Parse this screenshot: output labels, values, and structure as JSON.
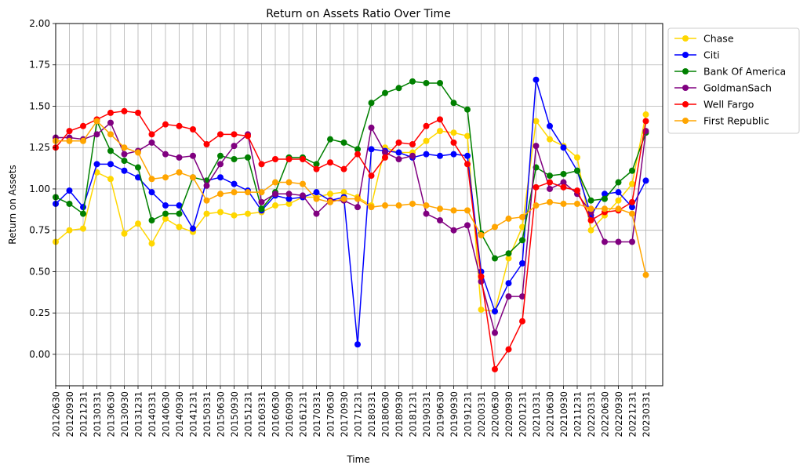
{
  "chart_data": {
    "type": "line",
    "title": "Return on Assets Ratio Over Time",
    "xlabel": "Time",
    "ylabel": "Return on Assets",
    "ylim": [
      -0.19,
      2.0
    ],
    "yticks": [
      "0.00",
      "0.25",
      "0.50",
      "0.75",
      "1.00",
      "1.25",
      "1.50",
      "1.75",
      "2.00"
    ],
    "grid": true,
    "legend_position": "outside-top-right",
    "categories": [
      "20120630",
      "20120930",
      "20121231",
      "20130331",
      "20130630",
      "20130930",
      "20131231",
      "20140331",
      "20140630",
      "20140930",
      "20141231",
      "20150331",
      "20150630",
      "20150930",
      "20151231",
      "20160331",
      "20160630",
      "20160930",
      "20161231",
      "20170331",
      "20170630",
      "20170930",
      "20171231",
      "20180331",
      "20180630",
      "20180930",
      "20181231",
      "20190331",
      "20190630",
      "20190930",
      "20191231",
      "20200331",
      "20200630",
      "20200930",
      "20201231",
      "20210331",
      "20210630",
      "20210930",
      "20211231",
      "20220331",
      "20220630",
      "20220930",
      "20221231",
      "20230331"
    ],
    "series": [
      {
        "name": "Chase",
        "color": "#FFD700",
        "values": [
          0.68,
          0.75,
          0.76,
          1.1,
          1.06,
          0.73,
          0.79,
          0.67,
          0.82,
          0.77,
          0.74,
          0.85,
          0.86,
          0.84,
          0.85,
          0.86,
          0.9,
          0.91,
          0.95,
          0.95,
          0.97,
          0.98,
          0.95,
          0.9,
          1.25,
          1.22,
          1.22,
          1.29,
          1.35,
          1.34,
          1.32,
          0.27,
          0.26,
          0.58,
          0.77,
          1.41,
          1.3,
          1.26,
          1.19,
          0.75,
          0.84,
          0.93,
          1.03,
          1.45
        ]
      },
      {
        "name": "Citi",
        "color": "#0000FF",
        "values": [
          0.91,
          0.99,
          0.89,
          1.15,
          1.15,
          1.11,
          1.07,
          0.98,
          0.9,
          0.9,
          0.76,
          1.05,
          1.07,
          1.03,
          0.99,
          0.87,
          0.96,
          0.94,
          0.95,
          0.98,
          0.93,
          0.95,
          0.06,
          1.24,
          1.23,
          1.22,
          1.19,
          1.21,
          1.2,
          1.21,
          1.2,
          0.5,
          0.26,
          0.43,
          0.55,
          1.66,
          1.38,
          1.25,
          1.11,
          0.84,
          0.97,
          0.98,
          0.89,
          1.05
        ]
      },
      {
        "name": "Bank Of America",
        "color": "#008000",
        "values": [
          0.95,
          0.91,
          0.85,
          1.41,
          1.23,
          1.17,
          1.13,
          0.81,
          0.85,
          0.85,
          1.07,
          1.05,
          1.2,
          1.18,
          1.19,
          0.88,
          0.98,
          1.19,
          1.19,
          1.15,
          1.3,
          1.28,
          1.24,
          1.52,
          1.58,
          1.61,
          1.65,
          1.64,
          1.64,
          1.52,
          1.48,
          0.73,
          0.58,
          0.61,
          0.69,
          1.13,
          1.08,
          1.09,
          1.11,
          0.93,
          0.94,
          1.04,
          1.11,
          1.34
        ]
      },
      {
        "name": "GoldmanSach",
        "color": "#800080",
        "values": [
          1.31,
          1.31,
          1.3,
          1.33,
          1.4,
          1.21,
          1.23,
          1.28,
          1.21,
          1.19,
          1.2,
          1.02,
          1.15,
          1.26,
          1.33,
          0.92,
          0.97,
          0.97,
          0.96,
          0.85,
          0.93,
          0.93,
          0.89,
          1.37,
          1.22,
          1.18,
          1.2,
          0.85,
          0.81,
          0.75,
          0.78,
          0.44,
          0.13,
          0.35,
          0.35,
          1.26,
          1.0,
          1.04,
          0.97,
          0.86,
          0.68,
          0.68,
          0.68,
          1.35
        ]
      },
      {
        "name": "Well Fargo",
        "color": "#FF0000",
        "values": [
          1.25,
          1.35,
          1.38,
          1.42,
          1.46,
          1.47,
          1.46,
          1.33,
          1.39,
          1.38,
          1.36,
          1.27,
          1.33,
          1.33,
          1.32,
          1.15,
          1.18,
          1.18,
          1.18,
          1.12,
          1.16,
          1.12,
          1.21,
          1.08,
          1.19,
          1.28,
          1.27,
          1.38,
          1.42,
          1.28,
          1.15,
          0.47,
          -0.09,
          0.03,
          0.2,
          1.01,
          1.04,
          1.01,
          0.99,
          0.81,
          0.86,
          0.87,
          0.92,
          1.41
        ]
      },
      {
        "name": "First Republic",
        "color": "#FFA500",
        "values": [
          1.29,
          1.29,
          1.29,
          1.41,
          1.33,
          1.25,
          1.22,
          1.06,
          1.07,
          1.1,
          1.07,
          0.93,
          0.97,
          0.98,
          0.98,
          0.98,
          1.04,
          1.04,
          1.03,
          0.94,
          0.92,
          0.94,
          0.94,
          0.89,
          0.9,
          0.9,
          0.91,
          0.9,
          0.88,
          0.87,
          0.87,
          0.72,
          0.77,
          0.82,
          0.83,
          0.9,
          0.92,
          0.91,
          0.91,
          0.88,
          0.88,
          0.88,
          0.85,
          0.48
        ]
      }
    ]
  }
}
